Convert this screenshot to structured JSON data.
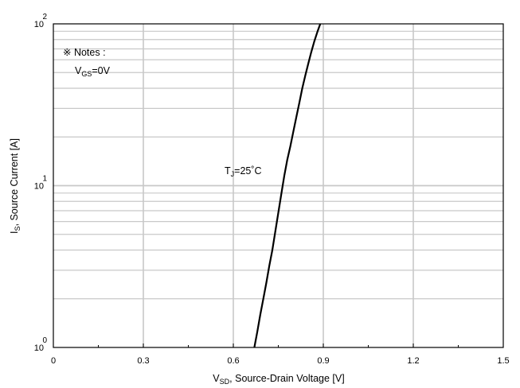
{
  "chart_data": {
    "type": "line",
    "xlabel": {
      "main": "V",
      "sub": "SD",
      "rest": ", Source-Drain Voltage [V]"
    },
    "ylabel": {
      "main": "I",
      "sub": "S",
      "rest": ", Source Current [A]"
    },
    "xlim": [
      0,
      1.5
    ],
    "x_ticks": [
      0,
      0.3,
      0.6,
      0.9,
      1.2,
      1.5
    ],
    "x_tick_labels": [
      "0",
      "0.3",
      "0.6",
      "0.9",
      "1.2",
      "1.5"
    ],
    "ylim": [
      1,
      100
    ],
    "y_scale": "log",
    "y_ticks": [
      {
        "base": "10",
        "exp": "0",
        "value": 1
      },
      {
        "base": "10",
        "exp": "1",
        "value": 10
      },
      {
        "base": "10",
        "exp": "2",
        "value": 100
      }
    ],
    "grid": true,
    "notes": {
      "line1": "※ Notes :",
      "var": "V",
      "var_sub": "GS",
      "value": "=0V"
    },
    "series": [
      {
        "label": {
          "main": "T",
          "sub": "J",
          "rest": "=25˚C"
        },
        "points": [
          [
            0.67,
            1.0
          ],
          [
            0.68,
            1.25
          ],
          [
            0.69,
            1.6
          ],
          [
            0.7,
            2.0
          ],
          [
            0.71,
            2.5
          ],
          [
            0.72,
            3.2
          ],
          [
            0.73,
            4.0
          ],
          [
            0.74,
            5.2
          ],
          [
            0.75,
            6.8
          ],
          [
            0.76,
            8.9
          ],
          [
            0.77,
            11.5
          ],
          [
            0.78,
            14.5
          ],
          [
            0.79,
            17.5
          ],
          [
            0.8,
            21.5
          ],
          [
            0.81,
            26.5
          ],
          [
            0.82,
            32.5
          ],
          [
            0.83,
            40.0
          ],
          [
            0.84,
            48.0
          ],
          [
            0.85,
            57.0
          ],
          [
            0.86,
            67.0
          ],
          [
            0.87,
            78.0
          ],
          [
            0.88,
            89.0
          ],
          [
            0.89,
            100.0
          ]
        ]
      }
    ]
  }
}
